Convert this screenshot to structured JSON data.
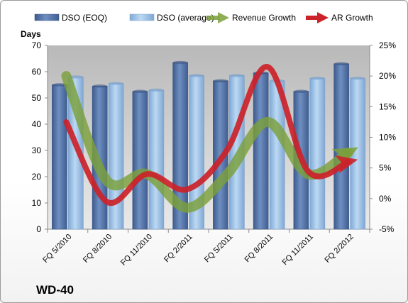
{
  "chart_data": {
    "type": "bar",
    "title": "WD-40",
    "ylabel": "Days",
    "y2label": "",
    "categories": [
      "FQ 5/2010",
      "FQ 8/2010",
      "FQ 11/2010",
      "FQ 2/2011",
      "FQ 5/2011",
      "FQ 8/2011",
      "FQ 11/2011",
      "FQ 2/2012"
    ],
    "ylim": [
      0,
      70
    ],
    "yticks": [
      0,
      10,
      20,
      30,
      40,
      50,
      60,
      70
    ],
    "y2lim": [
      -5,
      25
    ],
    "y2ticks": [
      "-5%",
      "0%",
      "5%",
      "10%",
      "15%",
      "20%",
      "25%"
    ],
    "y2tick_values": [
      -5,
      0,
      5,
      10,
      15,
      20,
      25
    ],
    "grid": false,
    "legend_position": "top",
    "series": [
      {
        "name": "DSO (EOQ)",
        "kind": "bar",
        "axis": "left",
        "color": "#4f6fa3",
        "values": [
          55,
          54.5,
          52.5,
          63.5,
          56.5,
          59.5,
          52.5,
          63
        ]
      },
      {
        "name": "DSO (average)",
        "kind": "bar",
        "axis": "left",
        "color": "#9cc3e8",
        "values": [
          58,
          55.5,
          53,
          58.5,
          58.5,
          56.5,
          57.5,
          57.5
        ]
      },
      {
        "name": "Revenue Growth",
        "kind": "line",
        "axis": "right",
        "unit": "%",
        "color": "#7ba03a",
        "values": [
          20,
          3,
          4,
          -1.5,
          4,
          12.5,
          4,
          7.5
        ]
      },
      {
        "name": "AR Growth",
        "kind": "line",
        "axis": "right",
        "unit": "%",
        "color": "#cc2229",
        "values": [
          12.5,
          -0.5,
          4,
          1.5,
          8,
          21.5,
          4.5,
          6
        ]
      }
    ]
  },
  "colors": {
    "plot_background": "#c8c8c8",
    "plot_background_light": "#e6e6e6",
    "bar_eoq": "#4f6fa3",
    "bar_avg": "#9cc3e8",
    "revenue_line": "#7ba03a",
    "ar_line": "#cc2229"
  }
}
